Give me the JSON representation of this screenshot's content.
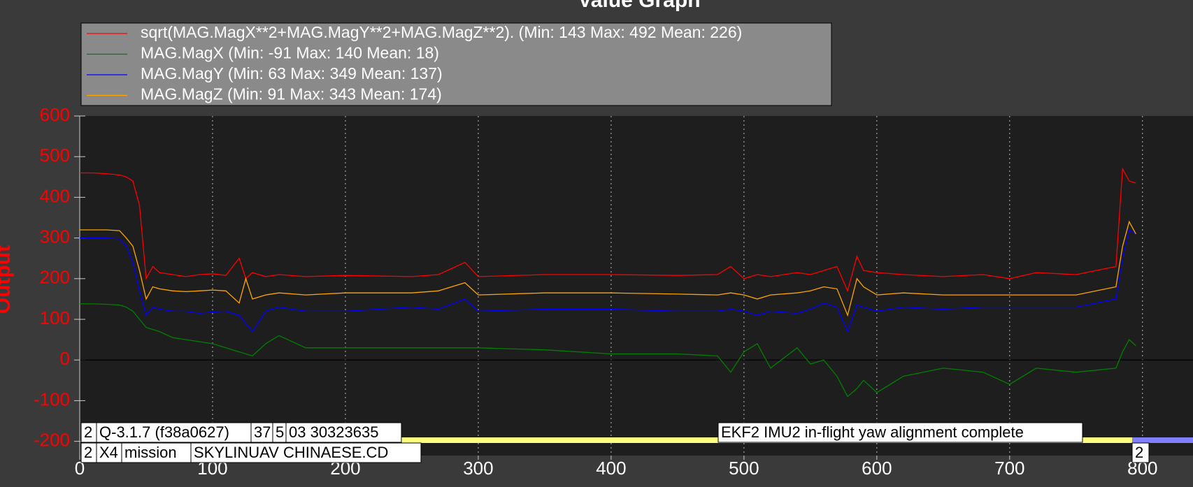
{
  "chart_data": {
    "type": "line",
    "title": "Value Graph",
    "y_label": "Output",
    "x": [
      0,
      10,
      20,
      30,
      35,
      40,
      45,
      50,
      55,
      60,
      70,
      80,
      90,
      100,
      110,
      120,
      125,
      130,
      140,
      150,
      170,
      200,
      250,
      270,
      290,
      300,
      350,
      400,
      450,
      480,
      490,
      500,
      510,
      520,
      540,
      550,
      560,
      570,
      578,
      585,
      590,
      600,
      620,
      650,
      680,
      700,
      720,
      750,
      780,
      785,
      790,
      795
    ],
    "series": [
      {
        "name": "sqrt(MAG.MagX**2+MAG.MagY**2+MAG.MagZ**2). (Min: 143 Max: 492 Mean: 226)",
        "color": "#ff0000",
        "values": [
          460,
          460,
          458,
          455,
          450,
          440,
          380,
          200,
          230,
          215,
          210,
          205,
          210,
          212,
          208,
          250,
          200,
          215,
          205,
          210,
          205,
          208,
          205,
          210,
          240,
          205,
          210,
          210,
          208,
          210,
          230,
          200,
          210,
          205,
          215,
          210,
          220,
          230,
          170,
          255,
          220,
          215,
          210,
          205,
          210,
          200,
          215,
          210,
          230,
          470,
          440,
          435
        ]
      },
      {
        "name": "MAG.MagX (Min: -91 Max: 140 Mean: 18)",
        "color": "#008000",
        "values": [
          138,
          138,
          137,
          135,
          130,
          120,
          100,
          80,
          75,
          70,
          55,
          50,
          45,
          40,
          30,
          20,
          15,
          10,
          40,
          60,
          30,
          30,
          30,
          30,
          30,
          30,
          25,
          15,
          15,
          10,
          -30,
          20,
          40,
          -20,
          30,
          -10,
          0,
          -40,
          -90,
          -70,
          -50,
          -80,
          -40,
          -20,
          -30,
          -60,
          -20,
          -30,
          -20,
          20,
          50,
          35
        ]
      },
      {
        "name": "MAG.MagY (Min: 63 Max: 349 Mean: 137)",
        "color": "#0000ff",
        "values": [
          300,
          300,
          300,
          298,
          280,
          240,
          170,
          110,
          130,
          125,
          120,
          120,
          115,
          118,
          120,
          110,
          90,
          70,
          120,
          130,
          120,
          120,
          130,
          125,
          150,
          120,
          125,
          125,
          120,
          120,
          125,
          120,
          110,
          120,
          115,
          125,
          140,
          130,
          70,
          135,
          130,
          120,
          130,
          125,
          130,
          130,
          130,
          130,
          150,
          250,
          320,
          310
        ]
      },
      {
        "name": "MAG.MagZ (Min: 91 Max: 343 Mean: 174)",
        "color": "#ffa500",
        "values": [
          320,
          320,
          320,
          318,
          300,
          280,
          220,
          150,
          180,
          175,
          170,
          168,
          170,
          172,
          170,
          140,
          200,
          150,
          160,
          165,
          160,
          165,
          165,
          170,
          190,
          160,
          165,
          165,
          162,
          160,
          165,
          160,
          150,
          160,
          165,
          170,
          180,
          175,
          110,
          200,
          180,
          160,
          165,
          160,
          160,
          160,
          160,
          160,
          180,
          280,
          340,
          310
        ]
      }
    ],
    "xlim": [
      0,
      838
    ],
    "ylim": [
      -235,
      600
    ],
    "xticks": [
      0,
      100,
      200,
      300,
      400,
      500,
      600,
      700,
      800
    ],
    "yticks": [
      -200,
      -100,
      0,
      100,
      200,
      300,
      400,
      500,
      600
    ],
    "grid": "x",
    "annotations": [
      "2",
      "Q-3.1.7 (f38a0627)",
      "37",
      "5",
      "03 30323635",
      "2",
      "X4",
      "mission",
      "SKYLINUAV CHINAESE.CD",
      "EKF2 IMU2 in-flight yaw alignment complete",
      "2"
    ]
  }
}
